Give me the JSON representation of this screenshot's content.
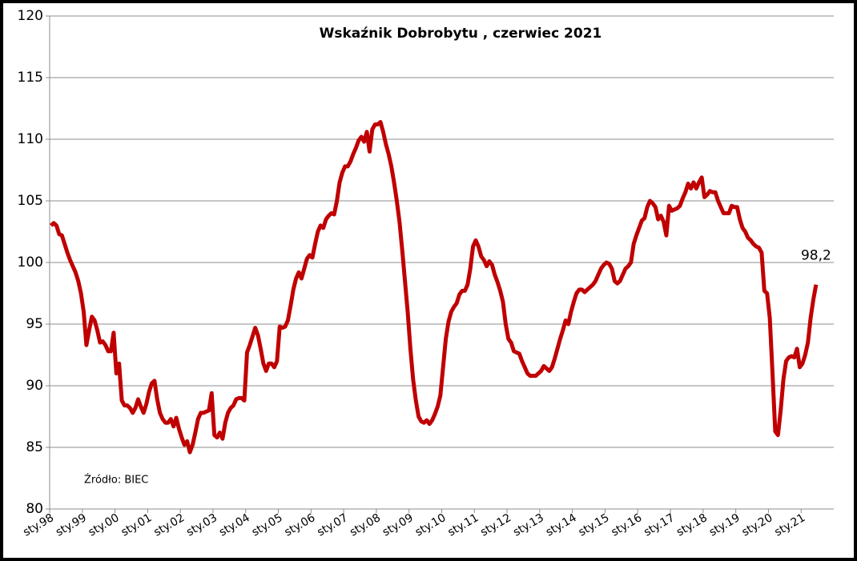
{
  "chart_data": {
    "type": "line",
    "title": "Wskaźnik Dobrobytu , czerwiec 2021",
    "annotation": "Źródło: BIEC",
    "end_label": "98,2",
    "ylim": [
      80,
      120
    ],
    "yticks": [
      80,
      85,
      90,
      95,
      100,
      105,
      110,
      115,
      120
    ],
    "grid": true,
    "categories": [
      "sty.98",
      null,
      null,
      null,
      null,
      null,
      null,
      null,
      null,
      null,
      null,
      null,
      "sty.99",
      null,
      null,
      null,
      null,
      null,
      null,
      null,
      null,
      null,
      null,
      null,
      "sty.00",
      null,
      null,
      null,
      null,
      null,
      null,
      null,
      null,
      null,
      null,
      null,
      "sty.01",
      null,
      null,
      null,
      null,
      null,
      null,
      null,
      null,
      null,
      null,
      null,
      "sty.02",
      null,
      null,
      null,
      null,
      null,
      null,
      null,
      null,
      null,
      null,
      null,
      "sty.03",
      null,
      null,
      null,
      null,
      null,
      null,
      null,
      null,
      null,
      null,
      null,
      "sty.04",
      null,
      null,
      null,
      null,
      null,
      null,
      null,
      null,
      null,
      null,
      null,
      "sty.05",
      null,
      null,
      null,
      null,
      null,
      null,
      null,
      null,
      null,
      null,
      null,
      "sty.06",
      null,
      null,
      null,
      null,
      null,
      null,
      null,
      null,
      null,
      null,
      null,
      "sty.07",
      null,
      null,
      null,
      null,
      null,
      null,
      null,
      null,
      null,
      null,
      null,
      "sty.08",
      null,
      null,
      null,
      null,
      null,
      null,
      null,
      null,
      null,
      null,
      null,
      "sty.09",
      null,
      null,
      null,
      null,
      null,
      null,
      null,
      null,
      null,
      null,
      null,
      "sty.10",
      null,
      null,
      null,
      null,
      null,
      null,
      null,
      null,
      null,
      null,
      null,
      "sty.11",
      null,
      null,
      null,
      null,
      null,
      null,
      null,
      null,
      null,
      null,
      null,
      "sty.12",
      null,
      null,
      null,
      null,
      null,
      null,
      null,
      null,
      null,
      null,
      null,
      "sty.13",
      null,
      null,
      null,
      null,
      null,
      null,
      null,
      null,
      null,
      null,
      null,
      "sty.14",
      null,
      null,
      null,
      null,
      null,
      null,
      null,
      null,
      null,
      null,
      null,
      "sty.15",
      null,
      null,
      null,
      null,
      null,
      null,
      null,
      null,
      null,
      null,
      null,
      "sty.16",
      null,
      null,
      null,
      null,
      null,
      null,
      null,
      null,
      null,
      null,
      null,
      "sty.17",
      null,
      null,
      null,
      null,
      null,
      null,
      null,
      null,
      null,
      null,
      null,
      "sty.18",
      null,
      null,
      null,
      null,
      null,
      null,
      null,
      null,
      null,
      null,
      null,
      "sty.19",
      null,
      null,
      null,
      null,
      null,
      null,
      null,
      null,
      null,
      null,
      null,
      "sty.20",
      null,
      null,
      null,
      null,
      null,
      null,
      null,
      null,
      null,
      null,
      null,
      "sty.21",
      null,
      null,
      null,
      null,
      null,
      null,
      null,
      null,
      null,
      null,
      null
    ],
    "series": [
      {
        "color": "#c00000",
        "values": [
          103.0,
          103.2,
          103.0,
          102.3,
          102.2,
          101.5,
          100.8,
          100.2,
          99.7,
          99.2,
          98.5,
          97.5,
          96.0,
          93.3,
          94.5,
          95.6,
          95.3,
          94.5,
          93.5,
          93.6,
          93.3,
          92.8,
          92.8,
          94.3,
          91.0,
          91.8,
          88.8,
          88.4,
          88.4,
          88.2,
          87.8,
          88.2,
          88.9,
          88.3,
          87.8,
          88.5,
          89.5,
          90.2,
          90.4,
          88.9,
          87.8,
          87.3,
          87.0,
          87.0,
          87.3,
          86.7,
          87.4,
          86.5,
          85.8,
          85.2,
          85.5,
          84.6,
          85.2,
          86.2,
          87.3,
          87.8,
          87.8,
          87.9,
          88.0,
          89.4,
          86.0,
          85.8,
          86.2,
          85.7,
          87.0,
          87.8,
          88.2,
          88.4,
          88.9,
          89.0,
          89.0,
          88.8,
          92.7,
          93.3,
          94.0,
          94.7,
          94.1,
          93.0,
          91.8,
          91.2,
          91.8,
          91.8,
          91.5,
          92.0,
          94.8,
          94.7,
          94.8,
          95.3,
          96.5,
          97.8,
          98.7,
          99.2,
          98.7,
          99.5,
          100.3,
          100.6,
          100.4,
          101.5,
          102.5,
          103.0,
          102.8,
          103.5,
          103.8,
          104.0,
          103.9,
          105.0,
          106.5,
          107.3,
          107.8,
          107.8,
          108.2,
          108.8,
          109.3,
          109.9,
          110.2,
          109.8,
          110.6,
          109.0,
          110.8,
          111.2,
          111.2,
          111.4,
          110.6,
          109.6,
          108.8,
          107.8,
          106.5,
          105.0,
          103.3,
          101.0,
          98.5,
          96.0,
          93.0,
          90.5,
          88.8,
          87.5,
          87.1,
          87.0,
          87.2,
          86.9,
          87.2,
          87.7,
          88.3,
          89.2,
          91.5,
          93.8,
          95.2,
          96.0,
          96.4,
          96.7,
          97.4,
          97.7,
          97.7,
          98.2,
          99.5,
          101.3,
          101.8,
          101.3,
          100.5,
          100.2,
          99.7,
          100.1,
          99.8,
          99.0,
          98.4,
          97.7,
          96.8,
          95.0,
          93.8,
          93.5,
          92.8,
          92.7,
          92.6,
          92.0,
          91.5,
          91.0,
          90.8,
          90.8,
          90.8,
          91.0,
          91.2,
          91.6,
          91.4,
          91.2,
          91.5,
          92.2,
          93.0,
          93.8,
          94.5,
          95.3,
          95.0,
          96.0,
          96.8,
          97.5,
          97.8,
          97.8,
          97.6,
          97.8,
          98.0,
          98.2,
          98.5,
          99.0,
          99.5,
          99.8,
          100.0,
          99.9,
          99.5,
          98.5,
          98.3,
          98.5,
          99.0,
          99.5,
          99.7,
          100.0,
          101.5,
          102.2,
          102.8,
          103.4,
          103.6,
          104.5,
          105.0,
          104.8,
          104.5,
          103.5,
          103.8,
          103.3,
          102.2,
          104.6,
          104.2,
          104.3,
          104.4,
          104.6,
          105.2,
          105.7,
          106.4,
          106.0,
          106.5,
          106.0,
          106.5,
          106.9,
          105.3,
          105.5,
          105.8,
          105.7,
          105.7,
          105.0,
          104.5,
          104.0,
          104.0,
          104.0,
          104.6,
          104.5,
          104.5,
          103.5,
          102.8,
          102.5,
          102.0,
          101.8,
          101.5,
          101.3,
          101.2,
          100.8,
          97.7,
          97.5,
          95.5,
          91.0,
          86.3,
          86.0,
          88.0,
          90.5,
          92.0,
          92.3,
          92.4,
          92.3,
          93.0,
          91.5,
          91.8,
          92.5,
          93.5,
          95.5,
          97.0,
          98.2,
          null,
          null,
          null,
          null,
          null,
          null
        ]
      }
    ]
  }
}
